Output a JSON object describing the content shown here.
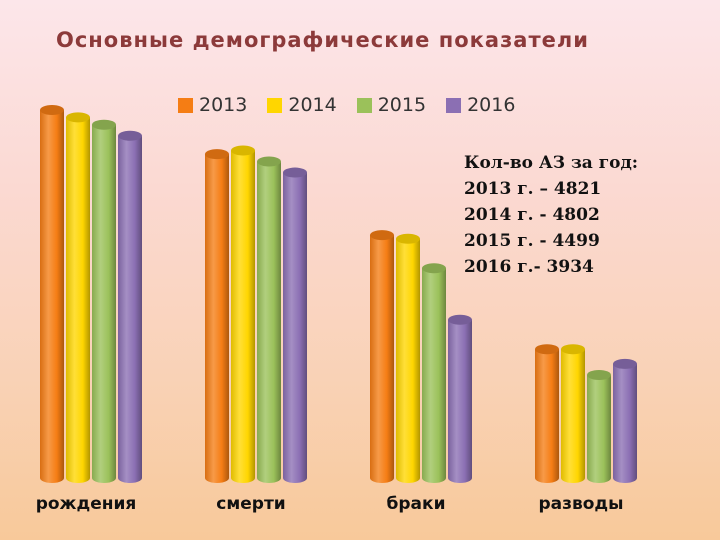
{
  "slide": {
    "title": "Основные демографические показатели",
    "note": {
      "heading": "Кол-во АЗ за год:",
      "lines": [
        "2013 г. – 4821",
        "2014 г. - 4802",
        "2015 г. - 4499",
        "2016 г.-  3934"
      ]
    }
  },
  "chart_data": {
    "type": "bar",
    "style": "3d-cylinder",
    "title": "",
    "categories": [
      "рождения",
      "смерти",
      "браки",
      "разводы"
    ],
    "series": [
      {
        "name": "2013",
        "color": "#f57d14",
        "values": [
          100,
          88,
          66,
          35
        ]
      },
      {
        "name": "2014",
        "color": "#ffd600",
        "values": [
          98,
          89,
          65,
          35
        ]
      },
      {
        "name": "2015",
        "color": "#9bc15a",
        "values": [
          96,
          86,
          57,
          28
        ]
      },
      {
        "name": "2016",
        "color": "#8b6fb3",
        "values": [
          93,
          83,
          43,
          31
        ]
      }
    ],
    "ylim": [
      0,
      100
    ],
    "grid": false,
    "legend": "top"
  }
}
